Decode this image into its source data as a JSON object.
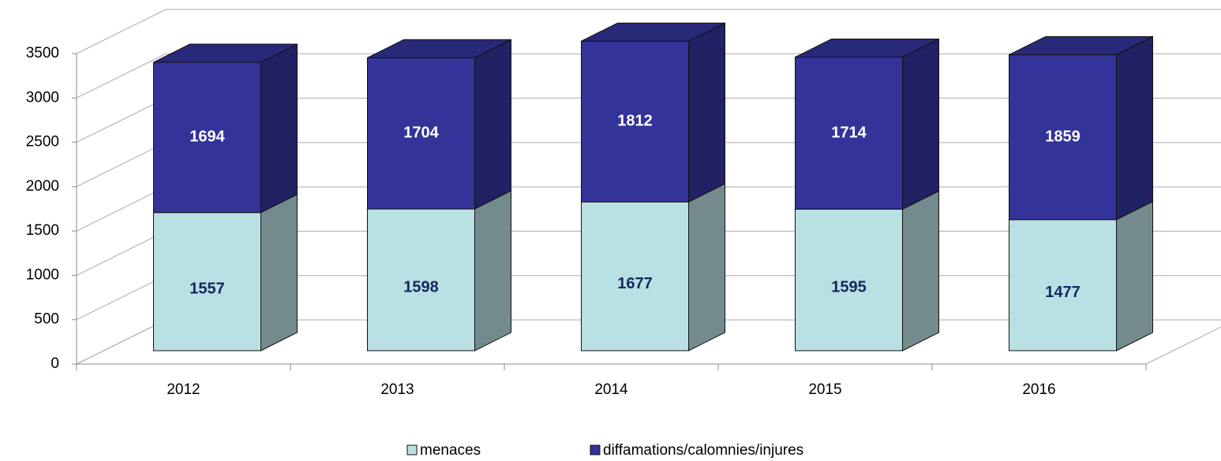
{
  "chart_data": {
    "type": "bar",
    "stacked": true,
    "three_d": true,
    "categories": [
      "2012",
      "2013",
      "2014",
      "2015",
      "2016"
    ],
    "series": [
      {
        "name": "menaces",
        "color": "#b9e0e3",
        "label_color": "#14285f",
        "values": [
          1557,
          1598,
          1677,
          1595,
          1477
        ]
      },
      {
        "name": "diffamations/calomnies/injures",
        "color": "#333399",
        "label_color": "#ffffff",
        "values": [
          1694,
          1704,
          1812,
          1714,
          1859
        ]
      }
    ],
    "ylim": [
      0,
      3500
    ],
    "yticks": [
      0,
      500,
      1000,
      1500,
      2000,
      2500,
      3000,
      3500
    ],
    "grid": true,
    "legend": "bottom"
  }
}
